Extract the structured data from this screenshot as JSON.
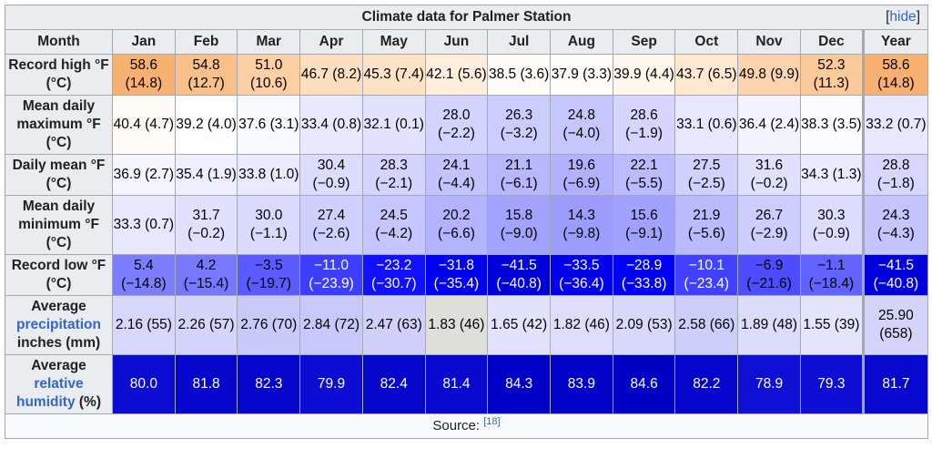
{
  "caption": "Climate data for Palmer Station",
  "hide_label": "hide",
  "headers": [
    "Month",
    "Jan",
    "Feb",
    "Mar",
    "Apr",
    "May",
    "Jun",
    "Jul",
    "Aug",
    "Sep",
    "Oct",
    "Nov",
    "Dec",
    "Year"
  ],
  "rows": [
    {
      "label_parts": [
        {
          "text": "Record high °F (°C)",
          "link": false
        }
      ],
      "cells": [
        {
          "t": "58.6 (14.8)",
          "bg": "#f8b070",
          "fg": "#000000"
        },
        {
          "t": "54.8 (12.7)",
          "bg": "#fac08a",
          "fg": "#000000"
        },
        {
          "t": "51.0 (10.6)",
          "bg": "#fccfa4",
          "fg": "#000000"
        },
        {
          "t": "46.7 (8.2)",
          "bg": "#fddebe",
          "fg": "#000000"
        },
        {
          "t": "45.3 (7.4)",
          "bg": "#fee3c6",
          "fg": "#000000"
        },
        {
          "t": "42.1 (5.6)",
          "bg": "#feeedb",
          "fg": "#000000"
        },
        {
          "t": "38.5 (3.6)",
          "bg": "#fffbf6",
          "fg": "#000000"
        },
        {
          "t": "37.9 (3.3)",
          "bg": "#fffcf9",
          "fg": "#000000"
        },
        {
          "t": "39.9 (4.4)",
          "bg": "#fff6ed",
          "fg": "#000000"
        },
        {
          "t": "43.7 (6.5)",
          "bg": "#fee8d0",
          "fg": "#000000"
        },
        {
          "t": "49.8 (9.9)",
          "bg": "#fcd3ac",
          "fg": "#000000"
        },
        {
          "t": "52.3 (11.3)",
          "bg": "#fbc99a",
          "fg": "#000000"
        },
        {
          "t": "58.6 (14.8)",
          "bg": "#f8b070",
          "fg": "#000000"
        }
      ]
    },
    {
      "label_parts": [
        {
          "text": "Mean daily maximum °F (°C)",
          "link": false
        }
      ],
      "cells": [
        {
          "t": "40.4 (4.7)",
          "bg": "#fffaf5",
          "fg": "#000000"
        },
        {
          "t": "39.2 (4.0)",
          "bg": "#fdfdff",
          "fg": "#000000"
        },
        {
          "t": "37.6 (3.1)",
          "bg": "#f8f8ff",
          "fg": "#000000"
        },
        {
          "t": "33.4 (0.8)",
          "bg": "#e8e8ff",
          "fg": "#000000"
        },
        {
          "t": "32.1 (0.1)",
          "bg": "#e3e3ff",
          "fg": "#000000"
        },
        {
          "t": "28.0 (−2.2)",
          "bg": "#d3d3ff",
          "fg": "#000000"
        },
        {
          "t": "26.3 (−3.2)",
          "bg": "#cccdff",
          "fg": "#000000"
        },
        {
          "t": "24.8 (−4.0)",
          "bg": "#c6c6ff",
          "fg": "#000000"
        },
        {
          "t": "28.6 (−1.9)",
          "bg": "#d5d5ff",
          "fg": "#000000"
        },
        {
          "t": "33.1 (0.6)",
          "bg": "#e7e7ff",
          "fg": "#000000"
        },
        {
          "t": "36.4 (2.4)",
          "bg": "#f4f4ff",
          "fg": "#000000"
        },
        {
          "t": "38.3 (3.5)",
          "bg": "#fbfbff",
          "fg": "#000000"
        },
        {
          "t": "33.2 (0.7)",
          "bg": "#e7e7ff",
          "fg": "#000000"
        }
      ]
    },
    {
      "label_parts": [
        {
          "text": "Daily mean °F (°C)",
          "link": false
        }
      ],
      "cells": [
        {
          "t": "36.9 (2.7)",
          "bg": "#f5f5ff",
          "fg": "#000000"
        },
        {
          "t": "35.4 (1.9)",
          "bg": "#efefff",
          "fg": "#000000"
        },
        {
          "t": "33.8 (1.0)",
          "bg": "#e9e9ff",
          "fg": "#000000"
        },
        {
          "t": "30.4 (−0.9)",
          "bg": "#dcdcff",
          "fg": "#000000"
        },
        {
          "t": "28.3 (−2.1)",
          "bg": "#d4d4ff",
          "fg": "#000000"
        },
        {
          "t": "24.1 (−4.4)",
          "bg": "#c3c3ff",
          "fg": "#000000"
        },
        {
          "t": "21.1 (−6.1)",
          "bg": "#b7b7ff",
          "fg": "#000000"
        },
        {
          "t": "19.6 (−6.9)",
          "bg": "#b1b1ff",
          "fg": "#000000"
        },
        {
          "t": "22.1 (−5.5)",
          "bg": "#bbbbff",
          "fg": "#000000"
        },
        {
          "t": "27.5 (−2.5)",
          "bg": "#d1d1ff",
          "fg": "#000000"
        },
        {
          "t": "31.6 (−0.2)",
          "bg": "#e1e1ff",
          "fg": "#000000"
        },
        {
          "t": "34.3 (1.3)",
          "bg": "#ebebff",
          "fg": "#000000"
        },
        {
          "t": "28.8 (−1.8)",
          "bg": "#d6d6ff",
          "fg": "#000000"
        }
      ]
    },
    {
      "label_parts": [
        {
          "text": "Mean daily minimum °F (°C)",
          "link": false
        }
      ],
      "cells": [
        {
          "t": "33.3 (0.7)",
          "bg": "#e7e7ff",
          "fg": "#000000"
        },
        {
          "t": "31.7 (−0.2)",
          "bg": "#e1e1ff",
          "fg": "#000000"
        },
        {
          "t": "30.0 (−1.1)",
          "bg": "#dadaff",
          "fg": "#000000"
        },
        {
          "t": "27.4 (−2.6)",
          "bg": "#d0d0ff",
          "fg": "#000000"
        },
        {
          "t": "24.5 (−4.2)",
          "bg": "#c5c5ff",
          "fg": "#000000"
        },
        {
          "t": "20.2 (−6.6)",
          "bg": "#b3b3ff",
          "fg": "#000000"
        },
        {
          "t": "15.8 (−9.0)",
          "bg": "#a2a2ff",
          "fg": "#000000"
        },
        {
          "t": "14.3 (−9.8)",
          "bg": "#9c9cff",
          "fg": "#000000"
        },
        {
          "t": "15.6 (−9.1)",
          "bg": "#a1a1ff",
          "fg": "#000000"
        },
        {
          "t": "21.9 (−5.6)",
          "bg": "#babaff",
          "fg": "#000000"
        },
        {
          "t": "26.7 (−2.9)",
          "bg": "#cdcdff",
          "fg": "#000000"
        },
        {
          "t": "30.3 (−0.9)",
          "bg": "#dcdcff",
          "fg": "#000000"
        },
        {
          "t": "24.3 (−4.3)",
          "bg": "#c4c4ff",
          "fg": "#000000"
        }
      ]
    },
    {
      "label_parts": [
        {
          "text": "Record low °F (°C)",
          "link": false
        }
      ],
      "cells": [
        {
          "t": "5.4 (−14.8)",
          "bg": "#7d7dff",
          "fg": "#000000"
        },
        {
          "t": "4.2 (−15.4)",
          "bg": "#7777ff",
          "fg": "#000000"
        },
        {
          "t": "−3.5 (−19.7)",
          "bg": "#5a5aff",
          "fg": "#000000"
        },
        {
          "t": "−11.0 (−23.9)",
          "bg": "#3d3dff",
          "fg": "#ffffff"
        },
        {
          "t": "−23.2 (−30.7)",
          "bg": "#1010ff",
          "fg": "#ffffff"
        },
        {
          "t": "−31.8 (−35.4)",
          "bg": "#0000f0",
          "fg": "#ffffff"
        },
        {
          "t": "−41.5 (−40.8)",
          "bg": "#0000da",
          "fg": "#ffffff"
        },
        {
          "t": "−33.5 (−36.4)",
          "bg": "#0000ec",
          "fg": "#ffffff"
        },
        {
          "t": "−28.9 (−33.8)",
          "bg": "#0000f7",
          "fg": "#ffffff"
        },
        {
          "t": "−10.1 (−23.4)",
          "bg": "#4141ff",
          "fg": "#ffffff"
        },
        {
          "t": "−6.9 (−21.6)",
          "bg": "#4d4dff",
          "fg": "#000000"
        },
        {
          "t": "−1.1 (−18.4)",
          "bg": "#6262ff",
          "fg": "#000000"
        },
        {
          "t": "−41.5 (−40.8)",
          "bg": "#0000da",
          "fg": "#ffffff"
        }
      ]
    },
    {
      "label_parts": [
        {
          "text": "Average ",
          "link": false
        },
        {
          "text": "precipitation",
          "link": true
        },
        {
          "text": " inches (mm)",
          "link": false
        }
      ],
      "cells": [
        {
          "t": "2.16 (55)",
          "bg": "#d7d7fb",
          "fg": "#000000"
        },
        {
          "t": "2.26 (57)",
          "bg": "#d5d5fb",
          "fg": "#000000"
        },
        {
          "t": "2.76 (70)",
          "bg": "#cacafa",
          "fg": "#000000"
        },
        {
          "t": "2.84 (72)",
          "bg": "#c8c8fa",
          "fg": "#000000"
        },
        {
          "t": "2.47 (63)",
          "bg": "#d0d0fa",
          "fg": "#000000"
        },
        {
          "t": "1.83 (46)",
          "bg": "#dededb",
          "fg": "#000000"
        },
        {
          "t": "1.65 (42)",
          "bg": "#e2e2fc",
          "fg": "#000000"
        },
        {
          "t": "1.82 (46)",
          "bg": "#dedefc",
          "fg": "#000000"
        },
        {
          "t": "2.09 (53)",
          "bg": "#d8d8fb",
          "fg": "#000000"
        },
        {
          "t": "2.58 (66)",
          "bg": "#cecefa",
          "fg": "#000000"
        },
        {
          "t": "1.89 (48)",
          "bg": "#dcdcfc",
          "fg": "#000000"
        },
        {
          "t": "1.55 (39)",
          "bg": "#e4e4fc",
          "fg": "#000000"
        },
        {
          "t": "25.90 (658)",
          "bg": "#d4d4fb",
          "fg": "#000000"
        }
      ]
    },
    {
      "label_parts": [
        {
          "text": "Average ",
          "link": false
        },
        {
          "text": "relative humidity",
          "link": true
        },
        {
          "text": " (%)",
          "link": false
        }
      ],
      "cells": [
        {
          "t": "80.0",
          "bg": "#0c0cd2",
          "fg": "#ffffff"
        },
        {
          "t": "81.8",
          "bg": "#0606cc",
          "fg": "#ffffff"
        },
        {
          "t": "82.3",
          "bg": "#0505cb",
          "fg": "#ffffff"
        },
        {
          "t": "79.9",
          "bg": "#0c0cd2",
          "fg": "#ffffff"
        },
        {
          "t": "82.4",
          "bg": "#0505cb",
          "fg": "#ffffff"
        },
        {
          "t": "81.4",
          "bg": "#0808ce",
          "fg": "#ffffff"
        },
        {
          "t": "84.3",
          "bg": "#0000c6",
          "fg": "#ffffff"
        },
        {
          "t": "83.9",
          "bg": "#0101c7",
          "fg": "#ffffff"
        },
        {
          "t": "84.6",
          "bg": "#0000c5",
          "fg": "#ffffff"
        },
        {
          "t": "82.2",
          "bg": "#0505cb",
          "fg": "#ffffff"
        },
        {
          "t": "78.9",
          "bg": "#0f0fd5",
          "fg": "#ffffff"
        },
        {
          "t": "79.3",
          "bg": "#0e0ed4",
          "fg": "#ffffff"
        },
        {
          "t": "81.7",
          "bg": "#0707cd",
          "fg": "#ffffff"
        }
      ]
    }
  ],
  "source_label": "Source:",
  "source_ref": "[18]"
}
